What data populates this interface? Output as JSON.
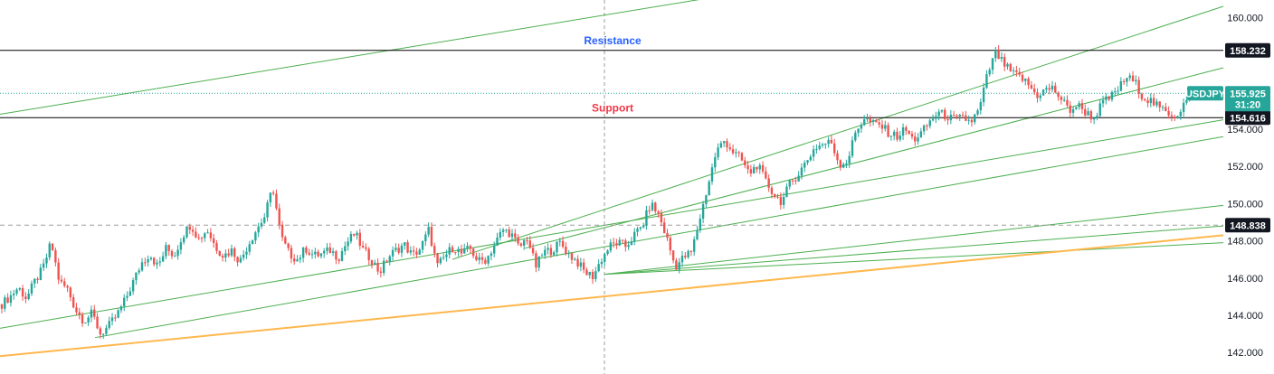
{
  "chart_data": {
    "type": "candlestick",
    "symbol": "USDJPY",
    "y_axis": {
      "ticks": [
        "160.000",
        "154.000",
        "152.000",
        "150.000",
        "148.000",
        "146.000",
        "144.000",
        "142.000"
      ],
      "tick_values": [
        160,
        154,
        152,
        150,
        148,
        146,
        144,
        142
      ],
      "range": [
        141.5,
        160.6
      ]
    },
    "horizontal_levels": [
      {
        "label": "Resistance",
        "value": 158.232,
        "tag": "158.232",
        "label_color": "#2962ff",
        "line_color": "#000000"
      },
      {
        "label": "Support",
        "value": 154.616,
        "tag": "154.616",
        "label_color": "#f23645",
        "line_color": "#000000"
      },
      {
        "label": "",
        "value": 148.838,
        "tag": "148.838",
        "label_color": "",
        "line_color": "#9e9e9e"
      }
    ],
    "current_price": {
      "symbol": "USDJPY",
      "price": "155.925",
      "countdown": "31:20",
      "value": 155.925,
      "color": "#26a69a"
    },
    "price_path": [
      144.6,
      145.0,
      145.5,
      144.9,
      145.8,
      146.5,
      147.9,
      145.8,
      145.4,
      144.3,
      143.7,
      144.1,
      143.0,
      143.4,
      144.0,
      144.8,
      145.8,
      146.8,
      147.3,
      146.6,
      147.6,
      147.2,
      148.3,
      148.9,
      148.1,
      148.6,
      147.7,
      147.2,
      147.5,
      146.9,
      147.8,
      148.6,
      149.3,
      150.9,
      148.2,
      147.3,
      147.0,
      147.6,
      147.2,
      147.3,
      147.5,
      147.1,
      147.9,
      148.4,
      147.5,
      147.0,
      146.3,
      147.1,
      147.5,
      147.8,
      147.2,
      147.6,
      148.6,
      146.6,
      147.2,
      147.7,
      147.3,
      147.6,
      146.9,
      147.0,
      147.8,
      148.6,
      148.4,
      147.6,
      148.2,
      146.6,
      147.4,
      147.5,
      147.9,
      147.3,
      146.9,
      146.3,
      146.1,
      147.0,
      147.7,
      147.9,
      147.7,
      148.3,
      148.8,
      150.0,
      149.4,
      148.1,
      146.6,
      147.1,
      147.4,
      149.2,
      151.0,
      152.8,
      153.4,
      152.8,
      152.4,
      151.6,
      152.1,
      151.2,
      150.5,
      150.1,
      151.1,
      151.6,
      152.3,
      153.0,
      153.2,
      153.3,
      152.1,
      152.3,
      153.9,
      154.6,
      154.3,
      154.2,
      153.8,
      153.6,
      154.0,
      153.4,
      153.8,
      154.4,
      154.9,
      154.7,
      154.5,
      154.6,
      154.4,
      155.0,
      156.9,
      158.1,
      157.5,
      157.0,
      156.8,
      156.4,
      155.8,
      156.1,
      156.2,
      155.6,
      155.0,
      155.3,
      154.9,
      154.6,
      155.4,
      155.7,
      156.2,
      156.8,
      156.5,
      155.7,
      155.5,
      155.1,
      154.9,
      154.7,
      155.4,
      155.925
    ],
    "trend_lines": [
      {
        "from": [
          0,
          154.8
        ],
        "to": [
          790,
          161.1
        ],
        "color": "#4caf50"
      },
      {
        "from": [
          0,
          143.3
        ],
        "to": [
          1352,
          154.5
        ],
        "color": "#4caf50"
      },
      {
        "from": [
          105,
          142.8
        ],
        "to": [
          1352,
          153.6
        ],
        "color": "#4caf50"
      },
      {
        "from": [
          668,
          146.2
        ],
        "to": [
          1352,
          149.9
        ],
        "color": "#4caf50"
      },
      {
        "from": [
          668,
          146.2
        ],
        "to": [
          1352,
          147.9
        ],
        "color": "#4caf50"
      },
      {
        "from": [
          668,
          146.2
        ],
        "to": [
          1352,
          148.8
        ],
        "color": "#4caf50"
      },
      {
        "from": [
          580,
          147.6
        ],
        "to": [
          1352,
          157.3
        ],
        "color": "#4caf50"
      },
      {
        "from": [
          500,
          147.0
        ],
        "to": [
          1352,
          160.6
        ],
        "color": "#4caf50"
      },
      {
        "from": [
          0,
          141.8
        ],
        "to": [
          1352,
          148.3
        ],
        "color": "#ffb74d"
      }
    ],
    "crosshair_index": 668
  }
}
